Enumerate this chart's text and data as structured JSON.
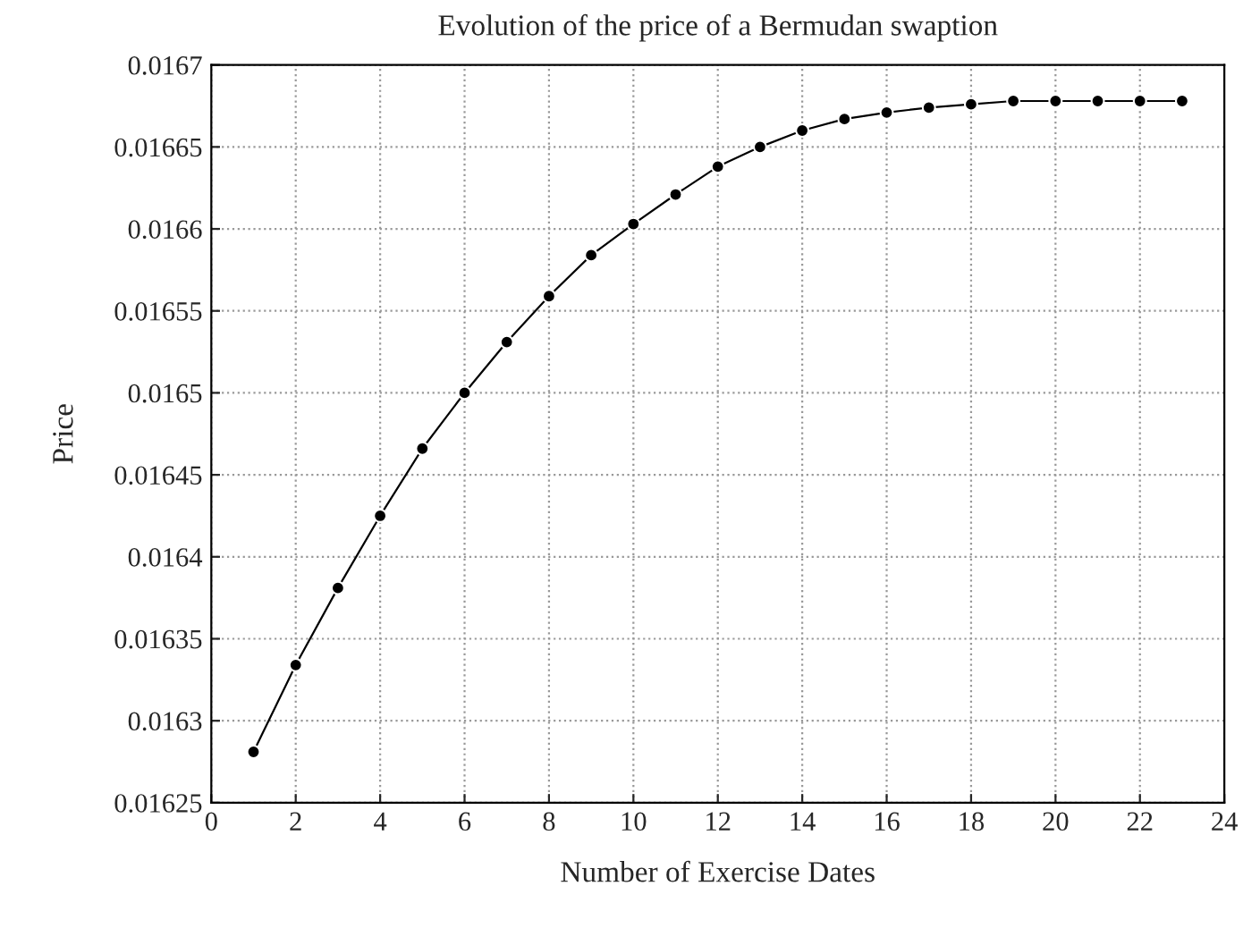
{
  "chart_data": {
    "type": "line",
    "title": "Evolution of the price of a Bermudan swaption",
    "xlabel": "Number of Exercise Dates",
    "ylabel": "Price",
    "x": [
      1,
      2,
      3,
      4,
      5,
      6,
      7,
      8,
      9,
      10,
      11,
      12,
      13,
      14,
      15,
      16,
      17,
      18,
      19,
      20,
      21,
      22,
      23
    ],
    "series": [
      {
        "color": "#000000",
        "values": [
          0.016281,
          0.016334,
          0.016381,
          0.016425,
          0.016466,
          0.0165,
          0.016531,
          0.016559,
          0.016584,
          0.016603,
          0.016621,
          0.016638,
          0.01665,
          0.01666,
          0.016667,
          0.016671,
          0.016674,
          0.016676,
          0.016678,
          0.016678,
          0.016678,
          0.016678,
          0.016678
        ]
      }
    ],
    "xlim": [
      0,
      24
    ],
    "xticks": [
      0,
      2,
      4,
      6,
      8,
      10,
      12,
      14,
      16,
      18,
      20,
      22,
      24
    ],
    "ylim": [
      0.01625,
      0.0167
    ],
    "yticks": [
      0.01625,
      0.0163,
      0.01635,
      0.0164,
      0.01645,
      0.0165,
      0.01655,
      0.0166,
      0.01665,
      0.0167
    ],
    "grid": true,
    "marker": "circle",
    "line_style": "solid"
  }
}
